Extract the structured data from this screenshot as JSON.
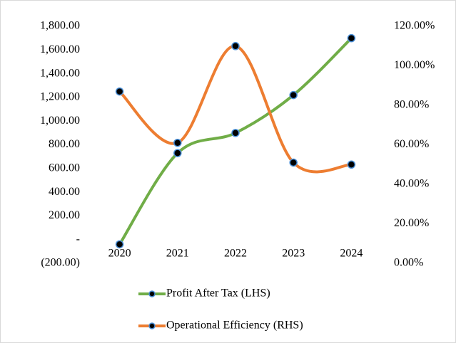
{
  "chart_data": {
    "type": "line",
    "categories": [
      "2020",
      "2021",
      "2022",
      "2023",
      "2024"
    ],
    "series": [
      {
        "name": "Profit After Tax (LHS)",
        "color": "#70ad47",
        "values": [
          -40,
          730,
          900,
          1220,
          1700
        ]
      },
      {
        "name": "Operational Efficiency (RHS)",
        "color": "#ed7d31",
        "axis": "y2",
        "values": [
          87,
          61,
          110,
          51,
          50
        ]
      }
    ],
    "ylim": [
      -200,
      1800
    ],
    "yticks": [
      {
        "value": -200,
        "label": "(200.00)"
      },
      {
        "value": 0,
        "label": "-"
      },
      {
        "value": 200,
        "label": "200.00"
      },
      {
        "value": 400,
        "label": "400.00"
      },
      {
        "value": 600,
        "label": "600.00"
      },
      {
        "value": 800,
        "label": "800.00"
      },
      {
        "value": 1000,
        "label": "1,000.00"
      },
      {
        "value": 1200,
        "label": "1,200.00"
      },
      {
        "value": 1400,
        "label": "1,400.00"
      },
      {
        "value": 1600,
        "label": "1,600.00"
      },
      {
        "value": 1800,
        "label": "1,800.00"
      }
    ],
    "y2lim": [
      0,
      120
    ],
    "y2ticks": [
      {
        "value": 0,
        "label": "0.00%"
      },
      {
        "value": 20,
        "label": "20.00%"
      },
      {
        "value": 40,
        "label": "40.00%"
      },
      {
        "value": 60,
        "label": "60.00%"
      },
      {
        "value": 80,
        "label": "80.00%"
      },
      {
        "value": 100,
        "label": "100.00%"
      },
      {
        "value": 120,
        "label": "120.00%"
      }
    ],
    "marker_color": "#000000",
    "marker_edge": "#4a90d9",
    "smooth": true,
    "grid": false,
    "legend": "bottom"
  }
}
